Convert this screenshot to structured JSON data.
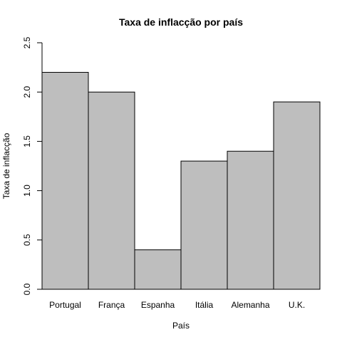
{
  "chart_data": {
    "type": "bar",
    "title": "Taxa de inflacção por país",
    "xlabel": "País",
    "ylabel": "Taxa de inflacção",
    "categories": [
      "Portugal",
      "França",
      "Espanha",
      "Itália",
      "Alemanha",
      "U.K."
    ],
    "values": [
      2.2,
      2.0,
      0.4,
      1.3,
      1.4,
      1.9
    ],
    "ylim": [
      0,
      2.5
    ],
    "yticks": [
      "0.0",
      "0.5",
      "1.0",
      "1.5",
      "2.0",
      "2.5"
    ],
    "grid": false,
    "legend": "none",
    "bar_color": "#bebebe",
    "bar_edge_color": "#000000"
  }
}
